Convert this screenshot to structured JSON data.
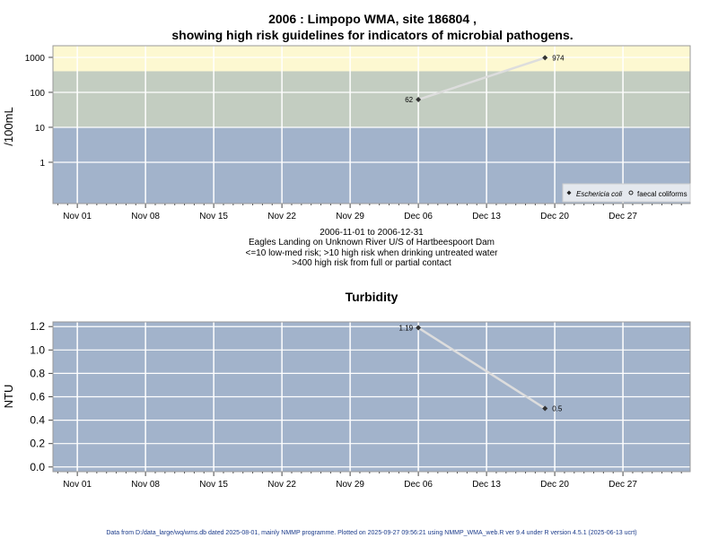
{
  "colors": {
    "low": "#a2b3cb",
    "mid": "#c3cdc1",
    "high": "#fdf8d1",
    "grid": "#ffffff",
    "line": "#dddddd",
    "point": "#333333"
  },
  "chart_data": [
    {
      "type": "line",
      "title_line1": "2006 : Limpopo WMA, site 186804 ,",
      "title_line2": "showing high risk guidelines for indicators of microbial pathogens.",
      "ylabel": "/100mL",
      "yscale": "log",
      "ylim": [
        0.066,
        2150
      ],
      "yticks": [
        1,
        10,
        100,
        1000
      ],
      "ytick_labels": [
        "1",
        "10",
        "100",
        "1000"
      ],
      "xlim_days_from_nov01": [
        -2.5,
        62.9
      ],
      "xticks": [
        "Nov 01",
        "Nov 08",
        "Nov 15",
        "Nov 22",
        "Nov 29",
        "Dec 06",
        "Dec 13",
        "Dec 20",
        "Dec 27"
      ],
      "bands": [
        {
          "from": 0,
          "to": 10,
          "label": "low-med risk"
        },
        {
          "from": 10,
          "to": 400,
          "label": "high risk drinking"
        },
        {
          "from": 400,
          "to": 100000,
          "label": "high risk contact"
        }
      ],
      "series": [
        {
          "name": "Eschericia coli",
          "points": [
            {
              "date": "2006-12-06",
              "day": 35,
              "value": 62,
              "label": "62"
            },
            {
              "date": "2006-12-19",
              "day": 48,
              "value": 974,
              "label": "974"
            }
          ]
        }
      ],
      "legend": [
        "Eschericia coli",
        "faecal coliforms"
      ],
      "legend_position": "bottom-right",
      "caption": [
        "2006-11-01 to 2006-12-31",
        "Eagles Landing on Unknown River U/S of Hartbeespoort Dam",
        "<=10 low-med risk; >10 high risk when drinking untreated water",
        ">400 high risk from full or partial contact"
      ]
    },
    {
      "type": "line",
      "title": "Turbidity",
      "ylabel": "NTU",
      "ylim": [
        -0.04,
        1.24
      ],
      "yticks": [
        0,
        0.2,
        0.4,
        0.6,
        0.8,
        1.0,
        1.2
      ],
      "ytick_labels": [
        "0.0",
        "0.2",
        "0.4",
        "0.6",
        "0.8",
        "1.0",
        "1.2"
      ],
      "xlim_days_from_nov01": [
        -2.5,
        62.9
      ],
      "xticks": [
        "Nov 01",
        "Nov 08",
        "Nov 15",
        "Nov 22",
        "Nov 29",
        "Dec 06",
        "Dec 13",
        "Dec 20",
        "Dec 27"
      ],
      "series": [
        {
          "name": "Turbidity",
          "points": [
            {
              "date": "2006-12-06",
              "day": 35,
              "value": 1.19,
              "label": "1.19"
            },
            {
              "date": "2006-12-19",
              "day": 48,
              "value": 0.5,
              "label": "0.5"
            }
          ]
        }
      ]
    }
  ],
  "footer": "Data from D:/data_large/wq/wms.db dated 2025-08-01, mainly NMMP programme. Plotted on 2025-09-27 09:56:21 using NMMP_WMA_web.R ver 9.4 under R version 4.5.1 (2025-06-13 ucrt)"
}
